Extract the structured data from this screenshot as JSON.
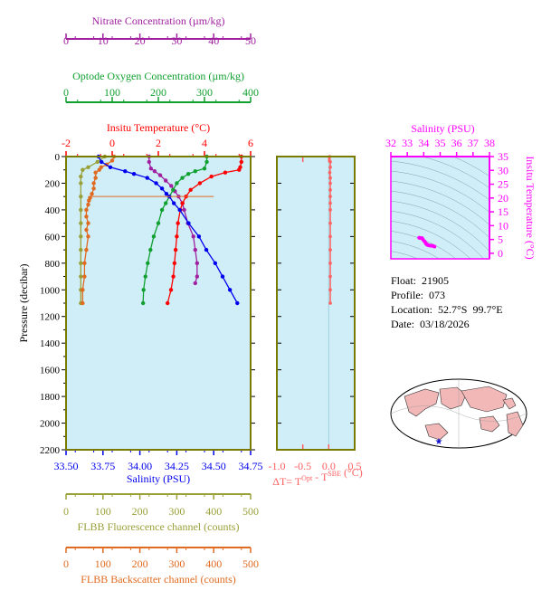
{
  "info": {
    "float_label": "Float:",
    "float_value": "21905",
    "profile_label": "Profile:",
    "profile_value": "073",
    "location_label": "Location:",
    "location_value": "52.7°S  99.7°E",
    "date_label": "Date:",
    "date_value": "03/18/2026"
  },
  "colors": {
    "nitrate": "#a020a0",
    "oxygen": "#10a030",
    "temperature": "#ff0000",
    "salinity": "#0000ee",
    "fluorescence": "#9aa038",
    "backscatter": "#e06a20",
    "delta_t": "#ff6060",
    "ts": "#ff00ff",
    "plot_bg": "#cfeef8",
    "frame": "#7a7a00"
  },
  "chart_data": [
    {
      "type": "line",
      "name": "main-profile",
      "ylabel": "Pressure (decibar)",
      "ylim": [
        2200,
        0
      ],
      "yticks": [
        0,
        200,
        400,
        600,
        800,
        1000,
        1200,
        1400,
        1600,
        1800,
        2000,
        2200
      ],
      "axes": {
        "nitrate": {
          "label": "Nitrate Concentration (µm/kg)",
          "lim": [
            0,
            50
          ],
          "ticks": [
            0,
            10,
            20,
            30,
            40,
            50
          ]
        },
        "oxygen": {
          "label": "Optode Oxygen Concentration (µm/kg)",
          "lim": [
            0,
            400
          ],
          "ticks": [
            0,
            100,
            200,
            300,
            400
          ]
        },
        "temperature": {
          "label": "Insitu Temperature (°C)",
          "lim": [
            -2,
            6
          ],
          "ticks": [
            -2,
            0,
            2,
            4,
            6
          ]
        },
        "salinity": {
          "label": "Salinity (PSU)",
          "lim": [
            33.5,
            34.75
          ],
          "ticks": [
            "33.50",
            "33.75",
            "34.00",
            "34.25",
            "34.50",
            "34.75"
          ]
        },
        "fluorescence": {
          "label": "FLBB Fluorescence channel (counts)",
          "lim": [
            0,
            500
          ],
          "ticks": [
            0,
            100,
            200,
            300,
            400,
            500
          ]
        },
        "backscatter": {
          "label": "FLBB Backscatter channel (counts)",
          "lim": [
            0,
            500
          ],
          "ticks": [
            0,
            100,
            200,
            300,
            400,
            500
          ]
        }
      },
      "series": [
        {
          "key": "salinity",
          "points": [
            [
              33.72,
              0
            ],
            [
              33.74,
              40
            ],
            [
              33.8,
              80
            ],
            [
              33.9,
              110
            ],
            [
              33.96,
              130
            ],
            [
              34.05,
              160
            ],
            [
              34.11,
              200
            ],
            [
              34.15,
              240
            ],
            [
              34.18,
              280
            ],
            [
              34.2,
              300
            ],
            [
              34.23,
              350
            ],
            [
              34.27,
              400
            ],
            [
              34.33,
              500
            ],
            [
              34.4,
              600
            ],
            [
              34.45,
              700
            ],
            [
              34.51,
              800
            ],
            [
              34.56,
              900
            ],
            [
              34.61,
              1000
            ],
            [
              34.66,
              1100
            ]
          ]
        },
        {
          "key": "temperature",
          "points": [
            [
              5.6,
              0
            ],
            [
              5.6,
              40
            ],
            [
              5.55,
              80
            ],
            [
              5.5,
              100
            ],
            [
              4.9,
              120
            ],
            [
              4.3,
              150
            ],
            [
              3.8,
              200
            ],
            [
              3.4,
              250
            ],
            [
              3.2,
              300
            ],
            [
              3.05,
              350
            ],
            [
              2.95,
              400
            ],
            [
              2.85,
              500
            ],
            [
              2.8,
              600
            ],
            [
              2.75,
              700
            ],
            [
              2.7,
              800
            ],
            [
              2.65,
              900
            ],
            [
              2.55,
              1000
            ],
            [
              2.4,
              1100
            ]
          ]
        },
        {
          "key": "oxygen",
          "points": [
            [
              305,
              0
            ],
            [
              305,
              40
            ],
            [
              300,
              90
            ],
            [
              280,
              110
            ],
            [
              265,
              130
            ],
            [
              252,
              160
            ],
            [
              240,
              200
            ],
            [
              232,
              250
            ],
            [
              224,
              300
            ],
            [
              216,
              350
            ],
            [
              208,
              400
            ],
            [
              200,
              500
            ],
            [
              190,
              600
            ],
            [
              183,
              700
            ],
            [
              177,
              800
            ],
            [
              172,
              900
            ],
            [
              168,
              1000
            ],
            [
              167,
              1100
            ]
          ]
        },
        {
          "key": "nitrate",
          "points": [
            [
              22.5,
              0
            ],
            [
              22.5,
              40
            ],
            [
              23,
              90
            ],
            [
              24,
              110
            ],
            [
              25.5,
              140
            ],
            [
              27,
              180
            ],
            [
              28.5,
              220
            ],
            [
              29.5,
              260
            ],
            [
              30.5,
              300
            ],
            [
              31.5,
              350
            ],
            [
              32,
              400
            ],
            [
              33,
              500
            ],
            [
              34.5,
              600
            ],
            [
              35,
              700
            ],
            [
              35.5,
              800
            ],
            [
              35.5,
              900
            ],
            [
              35,
              950
            ]
          ]
        },
        {
          "key": "fluorescence",
          "points": [
            [
              105,
              0
            ],
            [
              85,
              40
            ],
            [
              60,
              80
            ],
            [
              45,
              100
            ],
            [
              40,
              150
            ],
            [
              40,
              200
            ],
            [
              40,
              300
            ],
            [
              40,
              400
            ],
            [
              40,
              500
            ],
            [
              40,
              600
            ],
            [
              40,
              700
            ],
            [
              40,
              800
            ],
            [
              40,
              900
            ],
            [
              40,
              1000
            ],
            [
              40,
              1100
            ]
          ]
        },
        {
          "key": "backscatter",
          "points": [
            [
              130,
              0
            ],
            [
              125,
              30
            ],
            [
              110,
              60
            ],
            [
              95,
              80
            ],
            [
              90,
              100
            ],
            [
              80,
              120
            ],
            [
              80,
              160
            ],
            [
              75,
              200
            ],
            [
              75,
              240
            ],
            [
              70,
              280
            ],
            [
              65,
              310
            ],
            [
              62,
              330
            ],
            [
              60,
              360
            ],
            [
              55,
              400
            ],
            [
              55,
              450
            ],
            [
              60,
              500
            ],
            [
              55,
              550
            ],
            [
              60,
              600
            ],
            [
              55,
              700
            ],
            [
              50,
              800
            ],
            [
              50,
              900
            ],
            [
              45,
              1000
            ],
            [
              45,
              1100
            ]
          ]
        }
      ],
      "reference_line": {
        "key": "backscatter",
        "from": [
          60,
          300
        ],
        "to": [
          400,
          300
        ]
      }
    },
    {
      "type": "line",
      "name": "delta-t",
      "xlabel": "ΔT= T",
      "xlabel_sup1": "Opt",
      "xlabel_mid": " - T",
      "xlabel_sup2": "SBE",
      "xlabel_end": " (°C)",
      "xlim": [
        -1.0,
        0.5
      ],
      "xticks": [
        "-1.0",
        "-0.5",
        "0.0",
        "0.5"
      ],
      "ylim": [
        2200,
        0
      ],
      "series": [
        {
          "key": "delta_t",
          "points": [
            [
              0.02,
              0
            ],
            [
              0.03,
              40
            ],
            [
              0.03,
              80
            ],
            [
              0.02,
              120
            ],
            [
              0.03,
              160
            ],
            [
              0.03,
              200
            ],
            [
              0.03,
              250
            ],
            [
              0.03,
              300
            ],
            [
              0.03,
              350
            ],
            [
              0.03,
              400
            ],
            [
              0.03,
              500
            ],
            [
              0.03,
              600
            ],
            [
              0.03,
              700
            ],
            [
              0.03,
              800
            ],
            [
              0.03,
              900
            ],
            [
              0.03,
              1000
            ],
            [
              0.03,
              1100
            ]
          ]
        }
      ]
    },
    {
      "type": "scatter",
      "name": "ts-diagram",
      "xlabel": "Salinity (PSU)",
      "ylabel": "Insitu Temperature (°C)",
      "xlim": [
        32,
        38
      ],
      "ylim": [
        -2,
        35
      ],
      "xticks": [
        32,
        33,
        34,
        35,
        36,
        37,
        38
      ],
      "yticks": [
        0,
        5,
        10,
        15,
        20,
        25,
        30,
        35
      ],
      "series": [
        {
          "key": "ts",
          "points": [
            [
              33.72,
              5.6
            ],
            [
              33.74,
              5.6
            ],
            [
              33.8,
              5.55
            ],
            [
              33.9,
              5.5
            ],
            [
              33.96,
              4.9
            ],
            [
              34.05,
              4.3
            ],
            [
              34.11,
              3.8
            ],
            [
              34.15,
              3.4
            ],
            [
              34.2,
              3.2
            ],
            [
              34.23,
              3.05
            ],
            [
              34.27,
              2.95
            ],
            [
              34.33,
              2.85
            ],
            [
              34.4,
              2.8
            ],
            [
              34.45,
              2.75
            ],
            [
              34.51,
              2.7
            ],
            [
              34.56,
              2.65
            ],
            [
              34.61,
              2.55
            ],
            [
              34.66,
              2.4
            ]
          ]
        }
      ]
    }
  ]
}
